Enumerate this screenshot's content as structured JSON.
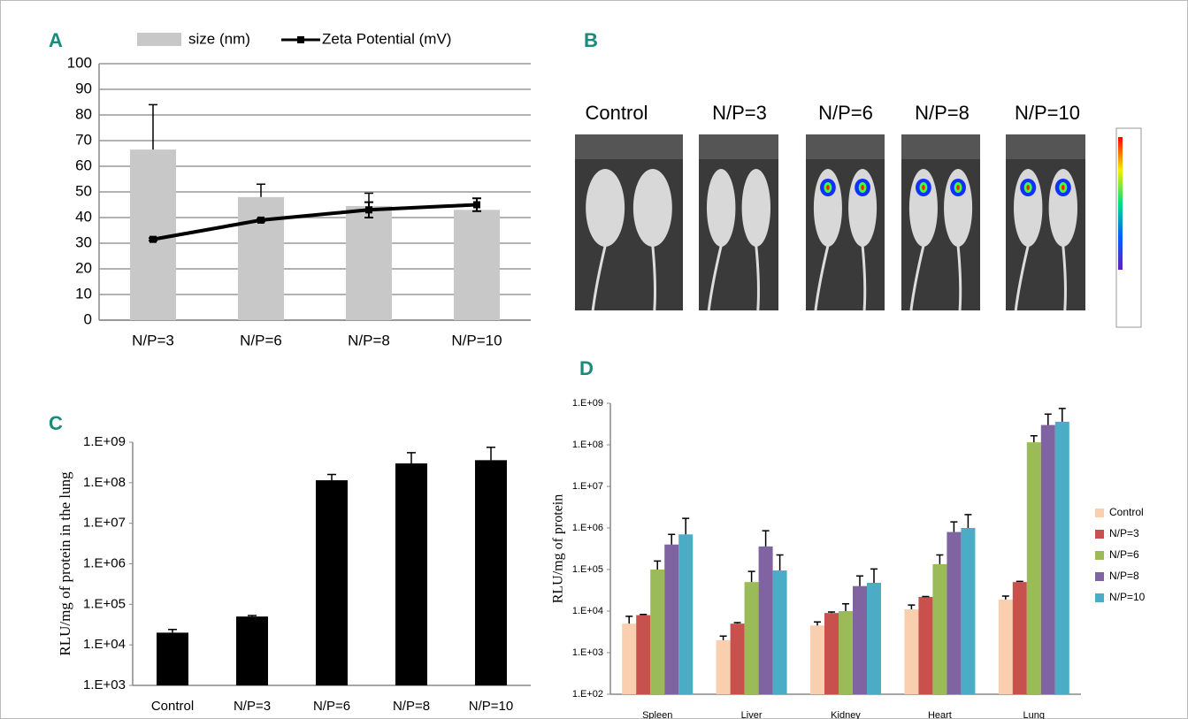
{
  "chart_data": [
    {
      "type": "combo",
      "panel": "A",
      "categories": [
        "N/P=3",
        "N/P=6",
        "N/P=8",
        "N/P=10"
      ],
      "ylim": [
        0,
        100
      ],
      "yticks": [
        0,
        10,
        20,
        30,
        40,
        50,
        60,
        70,
        80,
        90,
        100
      ],
      "grid": true,
      "legend": "top",
      "series": [
        {
          "name": "size (nm)",
          "type": "bar",
          "color": "#c8c8c8",
          "values": [
            66.5,
            48,
            44.5,
            43
          ],
          "errors": [
            17.5,
            5,
            5,
            null
          ]
        },
        {
          "name": "Zeta Potential (mV)",
          "type": "line",
          "color": "#000000",
          "values": [
            31.5,
            39,
            43,
            45
          ],
          "errors": [
            0.5,
            0.5,
            3,
            2.5
          ]
        }
      ]
    },
    {
      "type": "image",
      "panel": "B",
      "labels": [
        "Control",
        "N/P=3",
        "N/P=6",
        "N/P=8",
        "N/P=10"
      ]
    },
    {
      "type": "bar",
      "panel": "C",
      "log_scale": true,
      "ylabel": "RLU/mg of protein in the lung",
      "color": "#000000",
      "categories": [
        "Control",
        "N/P=3",
        "N/P=6",
        "N/P=8",
        "N/P=10"
      ],
      "values": [
        20000,
        50000,
        115000000,
        300000000,
        360000000
      ],
      "errors": [
        4000,
        3000,
        45000000,
        250000000,
        390000000
      ],
      "ylim": [
        1000,
        1000000000
      ],
      "yticks": [
        {
          "value": 1000,
          "label": "1.E+03"
        },
        {
          "value": 10000,
          "label": "1.E+04"
        },
        {
          "value": 100000,
          "label": "1.E+05"
        },
        {
          "value": 1000000,
          "label": "1.E+06"
        },
        {
          "value": 10000000,
          "label": "1.E+07"
        },
        {
          "value": 100000000,
          "label": "1.E+08"
        },
        {
          "value": 1000000000,
          "label": "1.E+09"
        }
      ]
    },
    {
      "type": "grouped_bar",
      "panel": "D",
      "log_scale": true,
      "ylabel": "RLU/mg of protein",
      "legend": "right",
      "categories": [
        "Spleen",
        "Liver",
        "Kidney",
        "Heart",
        "Lung"
      ],
      "ylim": [
        100,
        1000000000
      ],
      "yticks": [
        {
          "value": 100,
          "label": "1.E+02"
        },
        {
          "value": 1000,
          "label": "1.E+03"
        },
        {
          "value": 10000,
          "label": "1.E+04"
        },
        {
          "value": 100000,
          "label": "1.E+05"
        },
        {
          "value": 1000000,
          "label": "1.E+06"
        },
        {
          "value": 10000000,
          "label": "1.E+07"
        },
        {
          "value": 100000000,
          "label": "1.E+08"
        },
        {
          "value": 1000000000,
          "label": "1.E+09"
        }
      ],
      "series": [
        {
          "name": "Control",
          "color": "#f9cfb0",
          "values": [
            5000,
            2000,
            4500,
            11000,
            19000
          ],
          "errors": [
            2500,
            500,
            1000,
            3000,
            4000
          ]
        },
        {
          "name": "N/P=3",
          "color": "#c9514d",
          "values": [
            8000,
            5000,
            9000,
            22000,
            50000
          ],
          "errors": [
            300,
            300,
            500,
            500,
            2000
          ]
        },
        {
          "name": "N/P=6",
          "color": "#9bbb59",
          "values": [
            100000,
            50000,
            10000,
            135000,
            115000000
          ],
          "errors": [
            60000,
            40000,
            5000,
            90000,
            50000000
          ]
        },
        {
          "name": "N/P=8",
          "color": "#8064a2",
          "values": [
            400000,
            360000,
            40000,
            800000,
            300000000
          ],
          "errors": [
            300000,
            500000,
            30000,
            600000,
            250000000
          ]
        },
        {
          "name": "N/P=10",
          "color": "#4bacc6",
          "values": [
            700000,
            95000,
            48000,
            1000000,
            360000000
          ],
          "errors": [
            1000000,
            130000,
            55000,
            1100000,
            390000000
          ]
        }
      ]
    }
  ]
}
